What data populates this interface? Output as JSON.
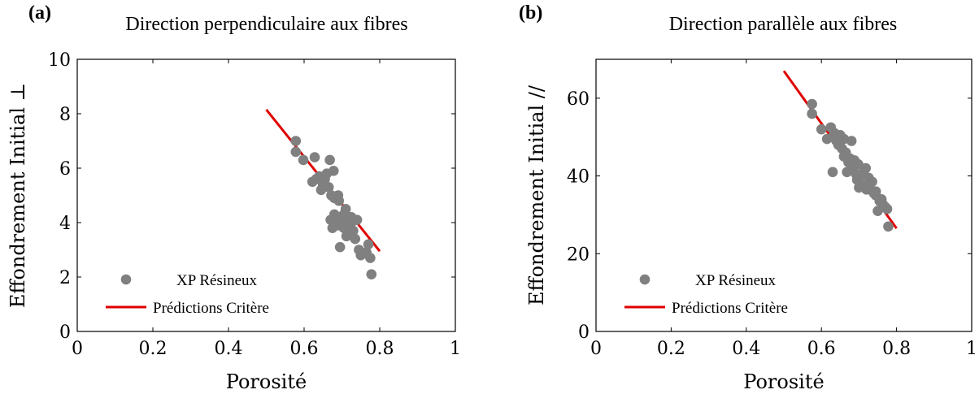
{
  "chart_data": [
    {
      "type": "scatter",
      "panel_label": "(a)",
      "title": "Direction perpendiculaire aux fibres",
      "xlabel": "Porosité",
      "ylabel": "Effondrement Initial ⊥",
      "xlim": [
        0,
        1
      ],
      "ylim": [
        0,
        10
      ],
      "xticks": [
        0,
        0.2,
        0.4,
        0.6,
        0.8,
        1
      ],
      "xtick_labels": [
        "0",
        "0.2",
        "0.4",
        "0.6",
        "0.8",
        "1"
      ],
      "yticks": [
        0,
        2,
        4,
        6,
        8,
        10
      ],
      "ytick_labels": [
        "0",
        "2",
        "4",
        "6",
        "8",
        "10"
      ],
      "grid": false,
      "legend_position": "bottom-left",
      "series": [
        {
          "name": "XP Résineux",
          "kind": "scatter",
          "color": "#808080",
          "x": [
            0.578,
            0.578,
            0.598,
            0.628,
            0.622,
            0.632,
            0.64,
            0.645,
            0.65,
            0.655,
            0.66,
            0.665,
            0.668,
            0.672,
            0.678,
            0.68,
            0.685,
            0.69,
            0.692,
            0.695,
            0.67,
            0.675,
            0.68,
            0.685,
            0.69,
            0.695,
            0.7,
            0.705,
            0.71,
            0.715,
            0.72,
            0.725,
            0.73,
            0.735,
            0.74,
            0.745,
            0.75,
            0.765,
            0.77,
            0.775,
            0.778,
            0.695,
            0.705,
            0.712,
            0.725
          ],
          "y": [
            7.0,
            6.6,
            6.3,
            6.4,
            5.5,
            5.6,
            5.7,
            5.2,
            5.4,
            5.6,
            5.8,
            5.3,
            6.3,
            5.0,
            5.9,
            4.9,
            4.2,
            5.0,
            4.8,
            4.0,
            4.1,
            3.8,
            4.3,
            4.0,
            3.9,
            4.2,
            4.1,
            3.8,
            4.5,
            3.9,
            3.6,
            4.0,
            3.7,
            3.4,
            4.1,
            3.0,
            2.8,
            2.9,
            3.2,
            2.7,
            2.1,
            3.1,
            4.3,
            3.5,
            4.2
          ]
        },
        {
          "name": "Prédictions Critère",
          "kind": "line",
          "color": "#e00000",
          "x": [
            0.5,
            0.8
          ],
          "y": [
            8.15,
            2.95
          ]
        }
      ]
    },
    {
      "type": "scatter",
      "panel_label": "(b)",
      "title": "Direction parallèle aux fibres",
      "xlabel": "Porosité",
      "ylabel": "Effondrement Initial //",
      "xlim": [
        0,
        1
      ],
      "ylim": [
        0,
        70
      ],
      "xticks": [
        0,
        0.2,
        0.4,
        0.6,
        0.8,
        1
      ],
      "xtick_labels": [
        "0",
        "0.2",
        "0.4",
        "0.6",
        "0.8",
        "1"
      ],
      "yticks": [
        0,
        20,
        40,
        60
      ],
      "ytick_labels": [
        "0",
        "20",
        "40",
        "60"
      ],
      "grid": false,
      "legend_position": "bottom-left",
      "series": [
        {
          "name": "XP Résineux",
          "kind": "scatter",
          "color": "#808080",
          "x": [
            0.575,
            0.575,
            0.6,
            0.615,
            0.625,
            0.63,
            0.635,
            0.64,
            0.645,
            0.65,
            0.655,
            0.66,
            0.665,
            0.668,
            0.672,
            0.676,
            0.68,
            0.684,
            0.688,
            0.692,
            0.695,
            0.698,
            0.702,
            0.706,
            0.71,
            0.714,
            0.718,
            0.722,
            0.726,
            0.73,
            0.735,
            0.74,
            0.745,
            0.75,
            0.755,
            0.76,
            0.765,
            0.77,
            0.775,
            0.778,
            0.63,
            0.66,
            0.7,
            0.72,
            0.745
          ],
          "y": [
            58.5,
            56.0,
            52.0,
            49.5,
            52.5,
            50.0,
            51.0,
            49.0,
            48.0,
            50.5,
            47.0,
            49.5,
            46.0,
            41.0,
            43.5,
            44.5,
            49.0,
            42.0,
            44.0,
            40.5,
            39.0,
            43.0,
            38.0,
            40.0,
            37.5,
            41.5,
            42.0,
            37.0,
            39.5,
            36.5,
            38.5,
            35.5,
            36.0,
            31.0,
            33.5,
            34.0,
            32.5,
            32.0,
            31.5,
            27.0,
            41.0,
            45.0,
            37.0,
            36.5,
            35.0
          ]
        },
        {
          "name": "Prédictions Critère",
          "kind": "line",
          "color": "#e00000",
          "x": [
            0.5,
            0.8
          ],
          "y": [
            67.0,
            26.5
          ]
        }
      ]
    }
  ]
}
